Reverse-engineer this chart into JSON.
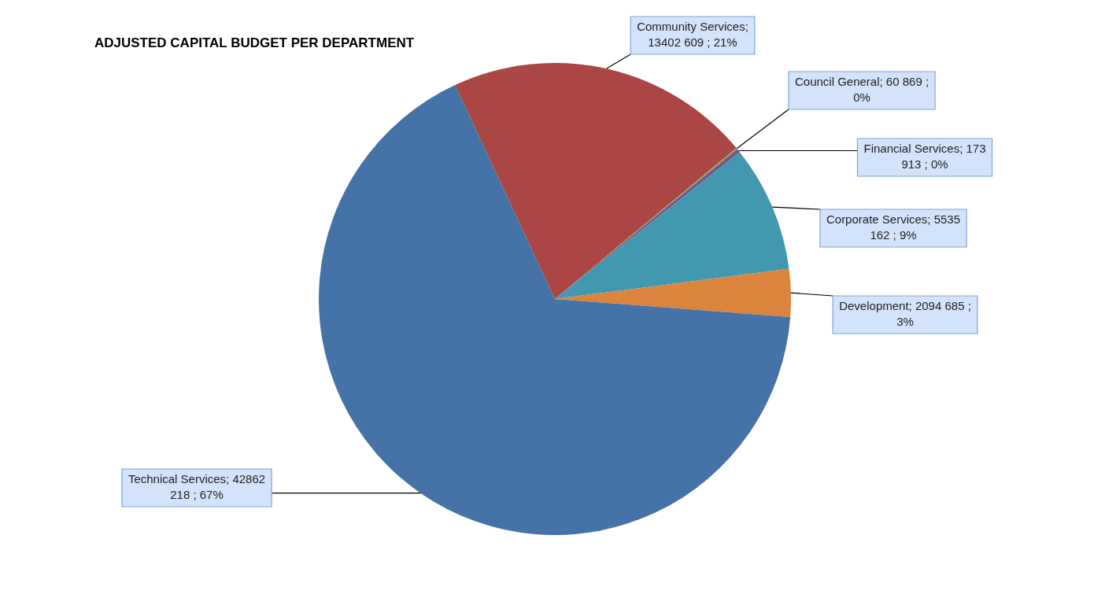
{
  "chart_data": {
    "type": "pie",
    "title": "ADJUSTED CAPITAL BUDGET PER DEPARTMENT",
    "categories": [
      "Community Services",
      "Council General",
      "Financial Services",
      "Corporate Services",
      "Development",
      "Technical Services"
    ],
    "values": [
      13402609,
      60869,
      173913,
      5535162,
      2094685,
      42862218
    ],
    "colors": [
      "#aa4643",
      "#89a54e",
      "#71588f",
      "#4198af",
      "#db843d",
      "#4572a7"
    ],
    "value_labels": [
      "; 13402 609 ; 21%",
      "; 60 869 ; 0%",
      "; 173 913 ; 0%",
      "; 5535 162 ; 9%",
      "; 2094 685 ; 3%",
      "; 42862 218 ; 67%"
    ],
    "legend": false
  }
}
